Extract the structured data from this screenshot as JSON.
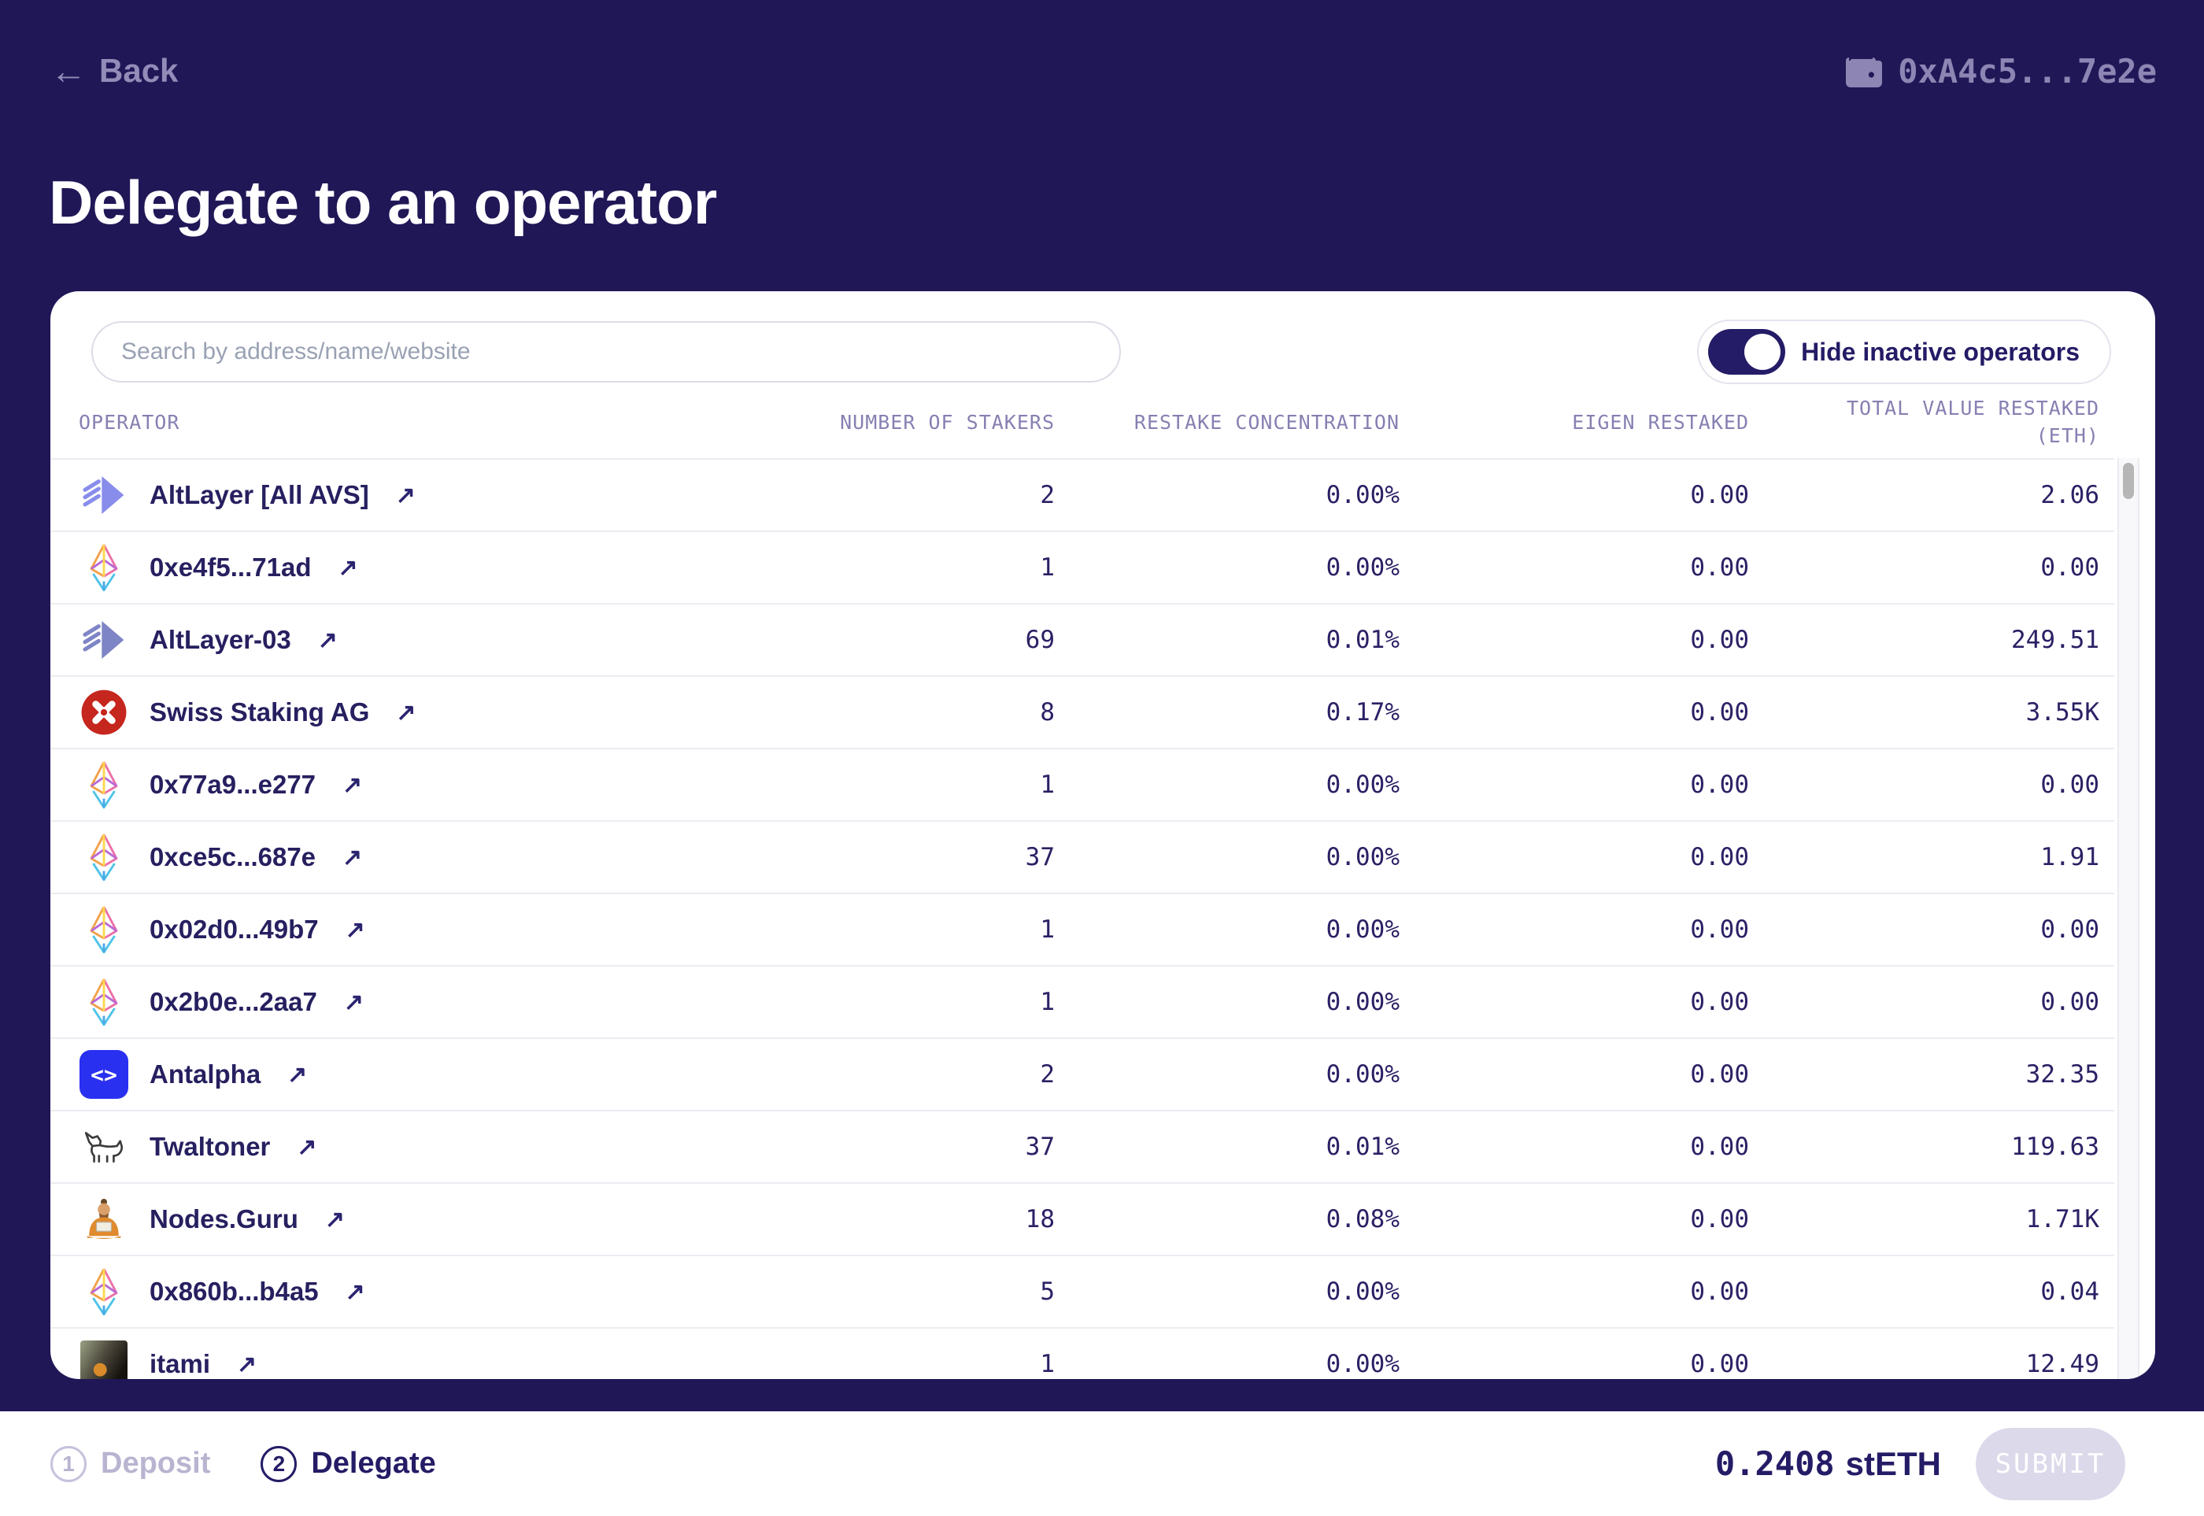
{
  "topbar": {
    "back_arrow": "←",
    "back_label": "Back",
    "wallet_address": "0xA4c5...7e2e"
  },
  "page": {
    "title": "Delegate to an operator"
  },
  "panel": {
    "search_placeholder": "Search by address/name/website",
    "toggle_label": "Hide inactive operators",
    "toggle_on": true,
    "columns": [
      "OPERATOR",
      "NUMBER OF STAKERS",
      "RESTAKE CONCENTRATION",
      "EIGEN RESTAKED",
      "TOTAL VALUE RESTAKED (ETH)"
    ],
    "rows": [
      {
        "name": "AltLayer [All AVS]",
        "icon": "altlayer",
        "link": "↗",
        "stakers": "2",
        "concentration": "0.00%",
        "eigen": "0.00",
        "total": "2.06"
      },
      {
        "name": "0xe4f5...71ad",
        "icon": "eth",
        "link": "↗",
        "stakers": "1",
        "concentration": "0.00%",
        "eigen": "0.00",
        "total": "0.00"
      },
      {
        "name": "AltLayer-03",
        "icon": "altlayer2",
        "link": "↗",
        "stakers": "69",
        "concentration": "0.01%",
        "eigen": "0.00",
        "total": "249.51"
      },
      {
        "name": "Swiss Staking AG",
        "icon": "swiss",
        "link": "↗",
        "stakers": "8",
        "concentration": "0.17%",
        "eigen": "0.00",
        "total": "3.55K"
      },
      {
        "name": "0x77a9...e277",
        "icon": "eth",
        "link": "↗",
        "stakers": "1",
        "concentration": "0.00%",
        "eigen": "0.00",
        "total": "0.00"
      },
      {
        "name": "0xce5c...687e",
        "icon": "eth",
        "link": "↗",
        "stakers": "37",
        "concentration": "0.00%",
        "eigen": "0.00",
        "total": "1.91"
      },
      {
        "name": "0x02d0...49b7",
        "icon": "eth",
        "link": "↗",
        "stakers": "1",
        "concentration": "0.00%",
        "eigen": "0.00",
        "total": "0.00"
      },
      {
        "name": "0x2b0e...2aa7",
        "icon": "eth",
        "link": "↗",
        "stakers": "1",
        "concentration": "0.00%",
        "eigen": "0.00",
        "total": "0.00"
      },
      {
        "name": "Antalpha",
        "icon": "antalpha",
        "link": "↗",
        "stakers": "2",
        "concentration": "0.00%",
        "eigen": "0.00",
        "total": "32.35"
      },
      {
        "name": "Twaltoner",
        "icon": "twaltoner",
        "link": "↗",
        "stakers": "37",
        "concentration": "0.01%",
        "eigen": "0.00",
        "total": "119.63"
      },
      {
        "name": "Nodes.Guru",
        "icon": "nodesguru",
        "link": "↗",
        "stakers": "18",
        "concentration": "0.08%",
        "eigen": "0.00",
        "total": "1.71K"
      },
      {
        "name": "0x860b...b4a5",
        "icon": "eth",
        "link": "↗",
        "stakers": "5",
        "concentration": "0.00%",
        "eigen": "0.00",
        "total": "0.04"
      },
      {
        "name": "itami",
        "icon": "itami",
        "link": "↗",
        "stakers": "1",
        "concentration": "0.00%",
        "eigen": "0.00",
        "total": "12.49"
      }
    ]
  },
  "footer": {
    "steps": [
      {
        "num": "1",
        "label": "Deposit",
        "active": false
      },
      {
        "num": "2",
        "label": "Delegate",
        "active": true
      }
    ],
    "amount_value": "0.2408",
    "amount_token": "stETH",
    "submit_label": "SUBMIT"
  },
  "colors": {
    "background_navy": "#201757",
    "text_navy": "#241c66",
    "muted_purple": "#8d86b4",
    "header_purple": "#8680b2",
    "swiss_red": "#c5261d",
    "antalpha_blue": "#2a30f0",
    "altlayer_periwinkle": "#888ceb",
    "submit_disabled_bg": "#dcd9eb"
  }
}
